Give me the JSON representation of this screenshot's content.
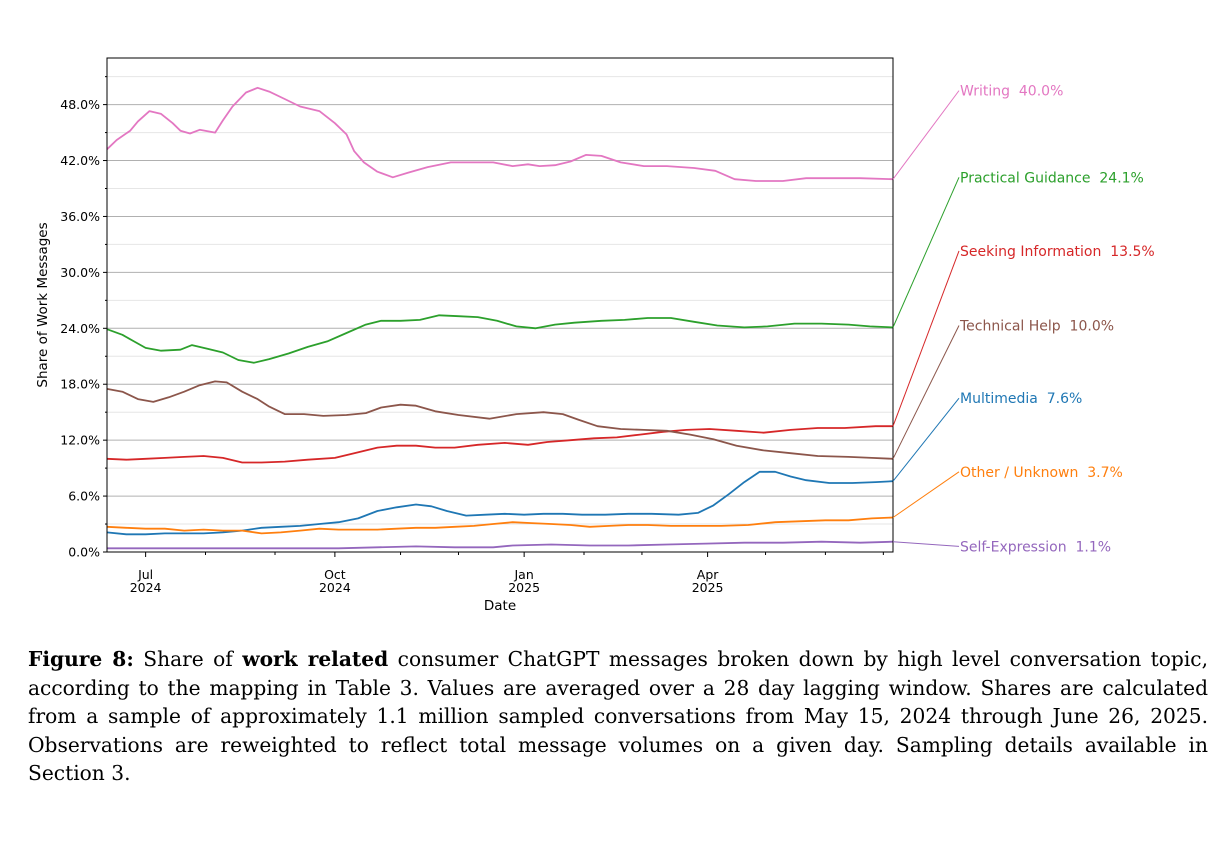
{
  "chart_data": {
    "type": "line",
    "title": "",
    "xlabel": "Date",
    "ylabel": "Share of Work Messages",
    "ylim": [
      0,
      53
    ],
    "x_range_days": [
      0,
      407
    ],
    "y_ticks": [
      {
        "value": 0,
        "label": "0.0%"
      },
      {
        "value": 6,
        "label": "6.0%"
      },
      {
        "value": 12,
        "label": "12.0%"
      },
      {
        "value": 18,
        "label": "18.0%"
      },
      {
        "value": 24,
        "label": "24.0%"
      },
      {
        "value": 30,
        "label": "30.0%"
      },
      {
        "value": 36,
        "label": "36.0%"
      },
      {
        "value": 42,
        "label": "42.0%"
      },
      {
        "value": 48,
        "label": "48.0%"
      }
    ],
    "y_minor_ticks": [
      3,
      9,
      15,
      21,
      27,
      33,
      39,
      45,
      51
    ],
    "x_ticks": [
      {
        "day": 20,
        "line1": "Jul",
        "line2": "2024"
      },
      {
        "day": 118,
        "line1": "Oct",
        "line2": "2024"
      },
      {
        "day": 216,
        "line1": "Jan",
        "line2": "2025"
      },
      {
        "day": 311,
        "line1": "Apr",
        "line2": "2025"
      }
    ],
    "x_minor_ticks": [
      51,
      87,
      152,
      182,
      247,
      277,
      341,
      372,
      402
    ],
    "series": [
      {
        "name": "Writing",
        "final_label": "40.0%",
        "color": "#e377c2",
        "label_value": 49.5,
        "points": [
          [
            0,
            43.2
          ],
          [
            5,
            44.2
          ],
          [
            12,
            45.2
          ],
          [
            16,
            46.2
          ],
          [
            22,
            47.3
          ],
          [
            28,
            47.0
          ],
          [
            34,
            46.0
          ],
          [
            38,
            45.2
          ],
          [
            43,
            44.9
          ],
          [
            48,
            45.3
          ],
          [
            56,
            45.0
          ],
          [
            60,
            46.3
          ],
          [
            65,
            47.8
          ],
          [
            72,
            49.3
          ],
          [
            78,
            49.8
          ],
          [
            84,
            49.4
          ],
          [
            92,
            48.6
          ],
          [
            100,
            47.8
          ],
          [
            110,
            47.3
          ],
          [
            118,
            46.0
          ],
          [
            124,
            44.8
          ],
          [
            128,
            43.0
          ],
          [
            133,
            41.8
          ],
          [
            140,
            40.8
          ],
          [
            148,
            40.2
          ],
          [
            156,
            40.7
          ],
          [
            166,
            41.3
          ],
          [
            178,
            41.8
          ],
          [
            192,
            41.8
          ],
          [
            200,
            41.8
          ],
          [
            210,
            41.4
          ],
          [
            218,
            41.6
          ],
          [
            224,
            41.4
          ],
          [
            232,
            41.5
          ],
          [
            240,
            41.9
          ],
          [
            248,
            42.6
          ],
          [
            256,
            42.5
          ],
          [
            266,
            41.8
          ],
          [
            278,
            41.4
          ],
          [
            290,
            41.4
          ],
          [
            304,
            41.2
          ],
          [
            315,
            40.9
          ],
          [
            325,
            40.0
          ],
          [
            336,
            39.8
          ],
          [
            350,
            39.8
          ],
          [
            362,
            40.1
          ],
          [
            374,
            40.1
          ],
          [
            390,
            40.1
          ],
          [
            407,
            40.0
          ]
        ]
      },
      {
        "name": "Practical Guidance",
        "final_label": "24.1%",
        "color": "#2ca02c",
        "label_value": 40.2,
        "points": [
          [
            0,
            23.9
          ],
          [
            8,
            23.3
          ],
          [
            14,
            22.6
          ],
          [
            20,
            21.9
          ],
          [
            28,
            21.6
          ],
          [
            38,
            21.7
          ],
          [
            44,
            22.2
          ],
          [
            52,
            21.8
          ],
          [
            60,
            21.4
          ],
          [
            68,
            20.6
          ],
          [
            76,
            20.3
          ],
          [
            84,
            20.7
          ],
          [
            94,
            21.3
          ],
          [
            104,
            22.0
          ],
          [
            114,
            22.6
          ],
          [
            124,
            23.5
          ],
          [
            134,
            24.4
          ],
          [
            142,
            24.8
          ],
          [
            152,
            24.8
          ],
          [
            162,
            24.9
          ],
          [
            172,
            25.4
          ],
          [
            182,
            25.3
          ],
          [
            192,
            25.2
          ],
          [
            202,
            24.8
          ],
          [
            212,
            24.2
          ],
          [
            222,
            24.0
          ],
          [
            232,
            24.4
          ],
          [
            242,
            24.6
          ],
          [
            256,
            24.8
          ],
          [
            268,
            24.9
          ],
          [
            280,
            25.1
          ],
          [
            292,
            25.1
          ],
          [
            304,
            24.7
          ],
          [
            316,
            24.3
          ],
          [
            330,
            24.1
          ],
          [
            342,
            24.2
          ],
          [
            356,
            24.5
          ],
          [
            370,
            24.5
          ],
          [
            384,
            24.4
          ],
          [
            395,
            24.2
          ],
          [
            407,
            24.1
          ]
        ]
      },
      {
        "name": "Seeking Information",
        "final_label": "13.5%",
        "color": "#d62728",
        "label_value": 32.3,
        "points": [
          [
            0,
            10.0
          ],
          [
            10,
            9.9
          ],
          [
            20,
            10.0
          ],
          [
            30,
            10.1
          ],
          [
            40,
            10.2
          ],
          [
            50,
            10.3
          ],
          [
            60,
            10.1
          ],
          [
            70,
            9.6
          ],
          [
            80,
            9.6
          ],
          [
            92,
            9.7
          ],
          [
            104,
            9.9
          ],
          [
            118,
            10.1
          ],
          [
            128,
            10.6
          ],
          [
            140,
            11.2
          ],
          [
            150,
            11.4
          ],
          [
            160,
            11.4
          ],
          [
            170,
            11.2
          ],
          [
            180,
            11.2
          ],
          [
            192,
            11.5
          ],
          [
            206,
            11.7
          ],
          [
            218,
            11.5
          ],
          [
            228,
            11.8
          ],
          [
            240,
            12.0
          ],
          [
            252,
            12.2
          ],
          [
            264,
            12.3
          ],
          [
            276,
            12.6
          ],
          [
            288,
            12.9
          ],
          [
            300,
            13.1
          ],
          [
            312,
            13.2
          ],
          [
            326,
            13.0
          ],
          [
            340,
            12.8
          ],
          [
            354,
            13.1
          ],
          [
            368,
            13.3
          ],
          [
            382,
            13.3
          ],
          [
            398,
            13.5
          ],
          [
            407,
            13.5
          ]
        ]
      },
      {
        "name": "Technical Help",
        "final_label": "10.0%",
        "color": "#8c564b",
        "label_value": 24.3,
        "points": [
          [
            0,
            17.5
          ],
          [
            8,
            17.2
          ],
          [
            16,
            16.4
          ],
          [
            24,
            16.1
          ],
          [
            32,
            16.6
          ],
          [
            40,
            17.2
          ],
          [
            48,
            17.9
          ],
          [
            56,
            18.3
          ],
          [
            62,
            18.2
          ],
          [
            70,
            17.2
          ],
          [
            78,
            16.4
          ],
          [
            84,
            15.6
          ],
          [
            92,
            14.8
          ],
          [
            102,
            14.8
          ],
          [
            112,
            14.6
          ],
          [
            124,
            14.7
          ],
          [
            134,
            14.9
          ],
          [
            142,
            15.5
          ],
          [
            152,
            15.8
          ],
          [
            160,
            15.7
          ],
          [
            170,
            15.1
          ],
          [
            182,
            14.7
          ],
          [
            198,
            14.3
          ],
          [
            212,
            14.8
          ],
          [
            226,
            15.0
          ],
          [
            236,
            14.8
          ],
          [
            244,
            14.2
          ],
          [
            254,
            13.5
          ],
          [
            266,
            13.2
          ],
          [
            278,
            13.1
          ],
          [
            290,
            13.0
          ],
          [
            302,
            12.6
          ],
          [
            314,
            12.1
          ],
          [
            326,
            11.4
          ],
          [
            340,
            10.9
          ],
          [
            354,
            10.6
          ],
          [
            368,
            10.3
          ],
          [
            384,
            10.2
          ],
          [
            396,
            10.1
          ],
          [
            407,
            10.0
          ]
        ]
      },
      {
        "name": "Multimedia",
        "final_label": "7.6%",
        "color": "#1f77b4",
        "label_value": 16.5,
        "points": [
          [
            0,
            2.1
          ],
          [
            10,
            1.9
          ],
          [
            20,
            1.9
          ],
          [
            30,
            2.0
          ],
          [
            40,
            2.0
          ],
          [
            50,
            2.0
          ],
          [
            60,
            2.1
          ],
          [
            70,
            2.3
          ],
          [
            80,
            2.6
          ],
          [
            90,
            2.7
          ],
          [
            100,
            2.8
          ],
          [
            110,
            3.0
          ],
          [
            120,
            3.2
          ],
          [
            130,
            3.6
          ],
          [
            140,
            4.4
          ],
          [
            150,
            4.8
          ],
          [
            160,
            5.1
          ],
          [
            168,
            4.9
          ],
          [
            176,
            4.4
          ],
          [
            186,
            3.9
          ],
          [
            196,
            4.0
          ],
          [
            206,
            4.1
          ],
          [
            216,
            4.0
          ],
          [
            226,
            4.1
          ],
          [
            236,
            4.1
          ],
          [
            246,
            4.0
          ],
          [
            258,
            4.0
          ],
          [
            270,
            4.1
          ],
          [
            282,
            4.1
          ],
          [
            296,
            4.0
          ],
          [
            306,
            4.2
          ],
          [
            314,
            5.0
          ],
          [
            322,
            6.2
          ],
          [
            330,
            7.5
          ],
          [
            338,
            8.6
          ],
          [
            346,
            8.6
          ],
          [
            354,
            8.1
          ],
          [
            362,
            7.7
          ],
          [
            374,
            7.4
          ],
          [
            386,
            7.4
          ],
          [
            398,
            7.5
          ],
          [
            407,
            7.6
          ]
        ]
      },
      {
        "name": "Other / Unknown",
        "final_label": "3.7%",
        "color": "#ff7f0e",
        "label_value": 8.6,
        "points": [
          [
            0,
            2.7
          ],
          [
            10,
            2.6
          ],
          [
            20,
            2.5
          ],
          [
            30,
            2.5
          ],
          [
            40,
            2.3
          ],
          [
            50,
            2.4
          ],
          [
            60,
            2.3
          ],
          [
            70,
            2.3
          ],
          [
            80,
            2.0
          ],
          [
            90,
            2.1
          ],
          [
            100,
            2.3
          ],
          [
            110,
            2.5
          ],
          [
            120,
            2.4
          ],
          [
            130,
            2.4
          ],
          [
            140,
            2.4
          ],
          [
            150,
            2.5
          ],
          [
            160,
            2.6
          ],
          [
            170,
            2.6
          ],
          [
            180,
            2.7
          ],
          [
            190,
            2.8
          ],
          [
            200,
            3.0
          ],
          [
            210,
            3.2
          ],
          [
            220,
            3.1
          ],
          [
            230,
            3.0
          ],
          [
            240,
            2.9
          ],
          [
            250,
            2.7
          ],
          [
            260,
            2.8
          ],
          [
            270,
            2.9
          ],
          [
            280,
            2.9
          ],
          [
            292,
            2.8
          ],
          [
            304,
            2.8
          ],
          [
            318,
            2.8
          ],
          [
            332,
            2.9
          ],
          [
            346,
            3.2
          ],
          [
            360,
            3.3
          ],
          [
            372,
            3.4
          ],
          [
            384,
            3.4
          ],
          [
            396,
            3.6
          ],
          [
            407,
            3.7
          ]
        ]
      },
      {
        "name": "Self-Expression",
        "final_label": "1.1%",
        "color": "#9467bd",
        "label_value": 0.6,
        "points": [
          [
            0,
            0.4
          ],
          [
            20,
            0.4
          ],
          [
            40,
            0.4
          ],
          [
            60,
            0.4
          ],
          [
            80,
            0.4
          ],
          [
            100,
            0.4
          ],
          [
            120,
            0.4
          ],
          [
            140,
            0.5
          ],
          [
            160,
            0.6
          ],
          [
            180,
            0.5
          ],
          [
            200,
            0.5
          ],
          [
            210,
            0.7
          ],
          [
            230,
            0.8
          ],
          [
            250,
            0.7
          ],
          [
            270,
            0.7
          ],
          [
            290,
            0.8
          ],
          [
            310,
            0.9
          ],
          [
            330,
            1.0
          ],
          [
            350,
            1.0
          ],
          [
            370,
            1.1
          ],
          [
            390,
            1.0
          ],
          [
            407,
            1.1
          ]
        ]
      }
    ]
  },
  "caption": {
    "label": "Figure 8:",
    "text_before": "Share of",
    "bold_phrase": "work related",
    "text_after": "consumer ChatGPT messages broken down by high level conversation topic, according to the mapping in Table 3. Values are averaged over a 28 day lagging window. Shares are calculated from a sample of approximately 1.1 million sampled conversations from May 15, 2024 through June 26, 2025. Observations are reweighted to reflect total message volumes on a given day. Sampling details available in Section 3."
  }
}
